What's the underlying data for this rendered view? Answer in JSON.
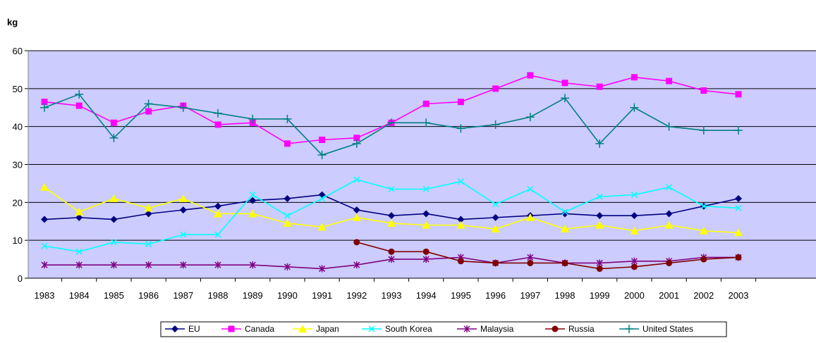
{
  "chart_data": {
    "type": "line",
    "title": "",
    "unit_label": "kg",
    "x": [
      "1983",
      "1984",
      "1985",
      "1986",
      "1987",
      "1988",
      "1989",
      "1990",
      "1991",
      "1992",
      "1993",
      "1994",
      "1995",
      "1996",
      "1997",
      "1998",
      "1999",
      "2000",
      "2001",
      "2002",
      "2003"
    ],
    "ylim": [
      0,
      60
    ],
    "yticks": [
      0,
      10,
      20,
      30,
      40,
      50,
      60
    ],
    "grid": true,
    "plot_background": "#ccccff",
    "legend_position": "bottom",
    "series": [
      {
        "name": "EU",
        "color": "#000080",
        "marker": "diamond",
        "values": [
          15.5,
          16,
          15.5,
          17,
          18,
          19,
          20.5,
          21,
          22,
          18,
          16.5,
          17,
          15.5,
          16,
          16.5,
          17,
          16.5,
          16.5,
          17,
          19,
          21
        ]
      },
      {
        "name": "Canada",
        "color": "#ff00ff",
        "marker": "square",
        "values": [
          46.5,
          45.5,
          41,
          44,
          45.5,
          40.5,
          41,
          35.5,
          36.5,
          37,
          41,
          46,
          46.5,
          50,
          53.5,
          51.5,
          50.5,
          53,
          52,
          49.5,
          48.5
        ]
      },
      {
        "name": "Japan",
        "color": "#ffff00",
        "marker": "triangle",
        "values": [
          24,
          17.5,
          21,
          18.5,
          21,
          17,
          17,
          14.5,
          13.5,
          16,
          14.5,
          14,
          14,
          13,
          16,
          13,
          14,
          12.5,
          14,
          12.5,
          12
        ]
      },
      {
        "name": "South Korea",
        "color": "#00ffff",
        "marker": "x",
        "values": [
          8.5,
          7,
          9.5,
          9,
          11.5,
          11.5,
          22,
          16.5,
          21,
          26,
          23.5,
          23.5,
          25.5,
          19.5,
          23.5,
          17.5,
          21.5,
          22,
          24,
          19,
          18.5
        ]
      },
      {
        "name": "Malaysia",
        "color": "#800080",
        "marker": "star",
        "values": [
          3.5,
          3.5,
          3.5,
          3.5,
          3.5,
          3.5,
          3.5,
          3,
          2.5,
          3.5,
          5,
          5,
          5.5,
          4,
          5.5,
          4,
          4,
          4.5,
          4.5,
          5.5,
          5.5
        ]
      },
      {
        "name": "Russia",
        "color": "#800000",
        "marker": "circle",
        "values": [
          null,
          null,
          null,
          null,
          null,
          null,
          null,
          null,
          null,
          9.5,
          7,
          7,
          4.5,
          4,
          4,
          4,
          2.5,
          3,
          4,
          5,
          5.5
        ]
      },
      {
        "name": "United States",
        "color": "#008080",
        "marker": "plus",
        "values": [
          45,
          48.5,
          37,
          46,
          45,
          43.5,
          42,
          42,
          32.5,
          35.5,
          41,
          41,
          39.5,
          40.5,
          42.5,
          47.5,
          35.5,
          45,
          40,
          39,
          39
        ]
      }
    ]
  }
}
